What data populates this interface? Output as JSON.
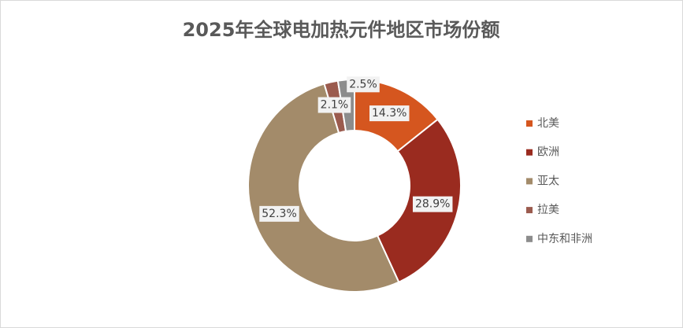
{
  "chart_data": {
    "type": "donut",
    "title": "2025年全球电加热元件地区市场份额",
    "series": [
      {
        "name": "市场份额",
        "categories": [
          "北美",
          "欧洲",
          "亚太",
          "拉美",
          "中东和非洲"
        ],
        "values": [
          14.3,
          28.9,
          52.3,
          2.1,
          2.5
        ],
        "value_labels": [
          "14.3%",
          "28.9%",
          "52.3%",
          "2.1%",
          "2.5%"
        ],
        "colors": [
          "#d5561f",
          "#9a2b1f",
          "#a38b6a",
          "#9b5b4e",
          "#8c8c8c"
        ]
      }
    ],
    "legend": "right"
  }
}
